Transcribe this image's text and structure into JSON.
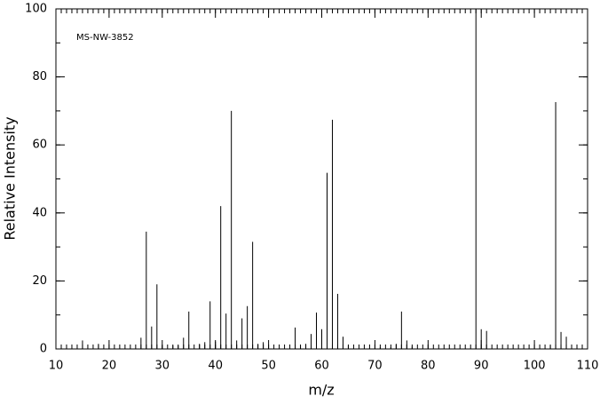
{
  "chart_data": {
    "type": "stem",
    "annotation": "MS-NW-3852",
    "xlabel": "m/z",
    "ylabel": "Relative Intensity",
    "color": "#000000",
    "x": [
      15,
      18,
      26,
      27,
      28,
      29,
      30,
      32,
      33,
      34,
      35,
      37,
      38,
      39,
      40,
      41,
      42,
      43,
      44,
      45,
      46,
      47,
      48,
      49,
      55,
      56,
      57,
      58,
      59,
      60,
      61,
      62,
      63,
      64,
      65,
      71,
      73,
      74,
      75,
      76,
      77,
      89,
      90,
      91,
      103,
      104,
      105,
      106
    ],
    "values": [
      2.5,
      1.5,
      3.3,
      34.5,
      6.6,
      19,
      1,
      1,
      1,
      3.3,
      11,
      1.5,
      2,
      14,
      2.2,
      42,
      10.4,
      70,
      2.5,
      9,
      12.6,
      31.5,
      1.5,
      2,
      6.3,
      1,
      1.5,
      4.4,
      10.7,
      5.8,
      51.8,
      67.4,
      16.2,
      3.6,
      1,
      0.5,
      0.5,
      1.5,
      11,
      2.5,
      0.7,
      100,
      5.8,
      5.3,
      1,
      72.6,
      5,
      3.6
    ],
    "xlim": [
      10,
      110
    ],
    "ylim": [
      0,
      100
    ],
    "xticks": [
      10,
      20,
      30,
      40,
      50,
      60,
      70,
      80,
      90,
      100,
      110
    ],
    "yticks": [
      0,
      20,
      40,
      60,
      80,
      100
    ],
    "xminor": 1,
    "yminor": 10
  }
}
